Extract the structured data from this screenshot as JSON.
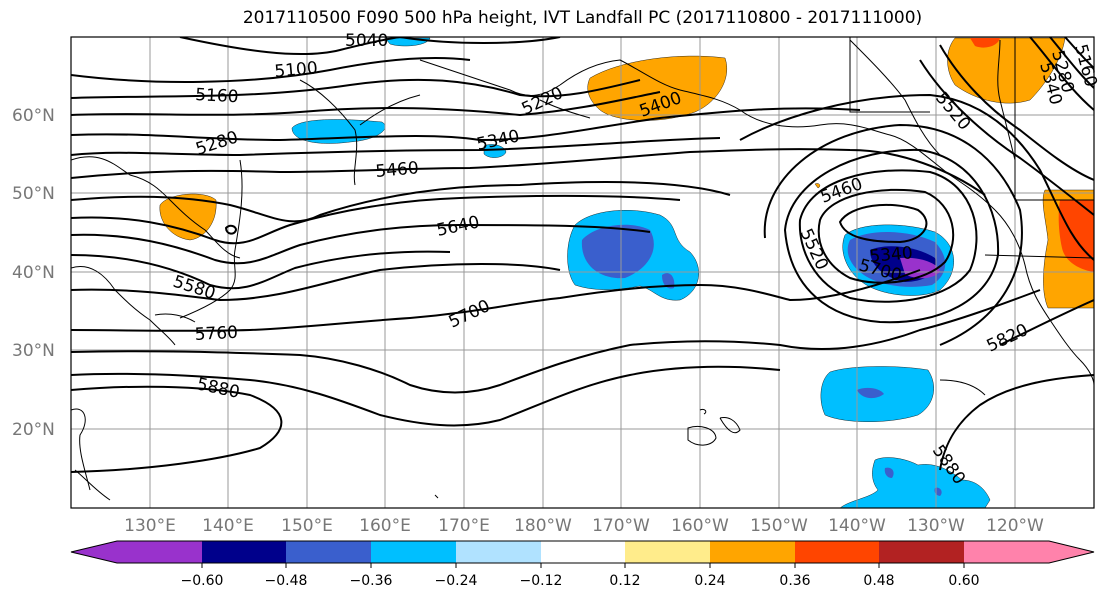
{
  "title": "2017110500 F090 500 hPa height, IVT Landfall PC (2017110800 - 2017111000)",
  "lat_labels": [
    "60°N",
    "50°N",
    "40°N",
    "30°N",
    "20°N"
  ],
  "lon_labels": [
    "130°E",
    "140°E",
    "150°E",
    "160°E",
    "170°E",
    "180°W",
    "170°W",
    "160°W",
    "150°W",
    "140°W",
    "130°W",
    "120°W"
  ],
  "contour_labels": [
    "5040",
    "5100",
    "5160",
    "5220",
    "5280",
    "5340",
    "5400",
    "5460",
    "5520",
    "5580",
    "5640",
    "5700",
    "5760",
    "5820",
    "5880",
    "5340",
    "5460",
    "5520",
    "5700",
    "5160",
    "5280",
    "5340",
    "5520",
    "5880"
  ],
  "colorbar": {
    "ticks": [
      "−0.60",
      "−0.48",
      "−0.36",
      "−0.24",
      "−0.12",
      "0.12",
      "0.24",
      "0.36",
      "0.48",
      "0.60"
    ],
    "colors": [
      "#9932cc",
      "#00008b",
      "#3a5fcd",
      "#00bfff",
      "#b0e2ff",
      "#ffffff",
      "#ffec8b",
      "#ffa500",
      "#ff4500",
      "#b22222",
      "#ff82ab"
    ]
  }
}
